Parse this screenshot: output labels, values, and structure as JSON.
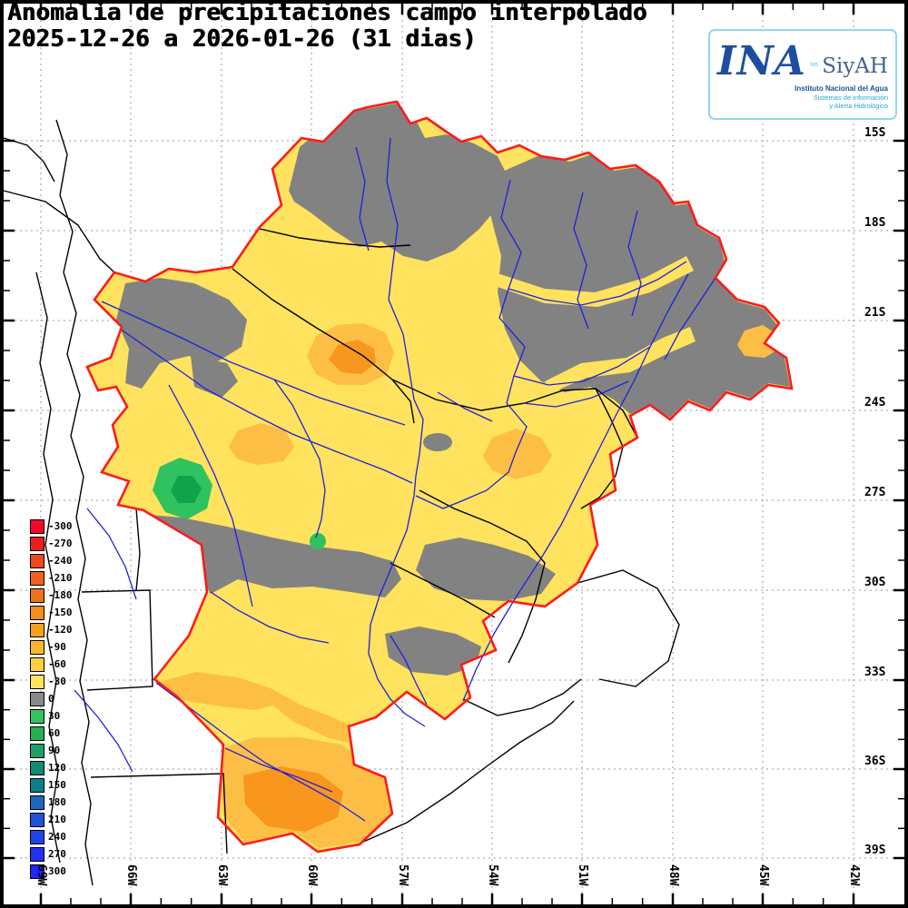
{
  "title": {
    "line1": "Anomalia de precipitaciones campo interpolado",
    "line2": "2025-12-26 a 2026-01-26 (31 dias)"
  },
  "logo": {
    "ina": "INA",
    "siyah": "SiyAH",
    "subtitle1": "Instituto Nacional del Agua",
    "subtitle2": "Sistemas de información",
    "subtitle3": "y Alerta Hidrológico"
  },
  "legend": {
    "entries": [
      {
        "value": "-300",
        "color": "#f20a2a"
      },
      {
        "value": "-270",
        "color": "#ee1c1c"
      },
      {
        "value": "-240",
        "color": "#f0481c"
      },
      {
        "value": "-210",
        "color": "#f2601e"
      },
      {
        "value": "-180",
        "color": "#ee741c"
      },
      {
        "value": "-150",
        "color": "#f68c1e"
      },
      {
        "value": "-120",
        "color": "#f8a01e"
      },
      {
        "value": "-90",
        "color": "#fbb52e"
      },
      {
        "value": "-60",
        "color": "#fdd042"
      },
      {
        "value": "-30",
        "color": "#ffe25e"
      },
      {
        "value": "0",
        "color": "#8a8a8a"
      },
      {
        "value": "30",
        "color": "#37c160"
      },
      {
        "value": "60",
        "color": "#27ad52"
      },
      {
        "value": "90",
        "color": "#1da06a"
      },
      {
        "value": "120",
        "color": "#108a70"
      },
      {
        "value": "150",
        "color": "#0c7f88"
      },
      {
        "value": "180",
        "color": "#1b66c0"
      },
      {
        "value": "210",
        "color": "#1d55d8"
      },
      {
        "value": "240",
        "color": "#1f44e8"
      },
      {
        "value": "270",
        "color": "#2233f4"
      },
      {
        "value": "300",
        "color": "#2424ff"
      }
    ]
  },
  "axes": {
    "lat_labels": [
      "15S",
      "18S",
      "21S",
      "24S",
      "27S",
      "30S",
      "33S",
      "36S",
      "39S"
    ],
    "lon_labels": [
      "69W",
      "66W",
      "63W",
      "60W",
      "57W",
      "54W",
      "51W",
      "48W",
      "45W",
      "42W"
    ]
  },
  "map_colors": {
    "land": "#ffffff",
    "basin_yellow": "#ffe25e",
    "anomaly_gray": "#828282",
    "orange_light": "#fdbe45",
    "orange_deep": "#f8961e",
    "green": "#2fc25f",
    "green_dark": "#12a34a",
    "river_blue": "#2020dd",
    "basin_outline": "#ff1a1a",
    "border_black": "#000000",
    "grid_gray": "#9a9a9a",
    "logo_wave": "#29b3d9"
  }
}
